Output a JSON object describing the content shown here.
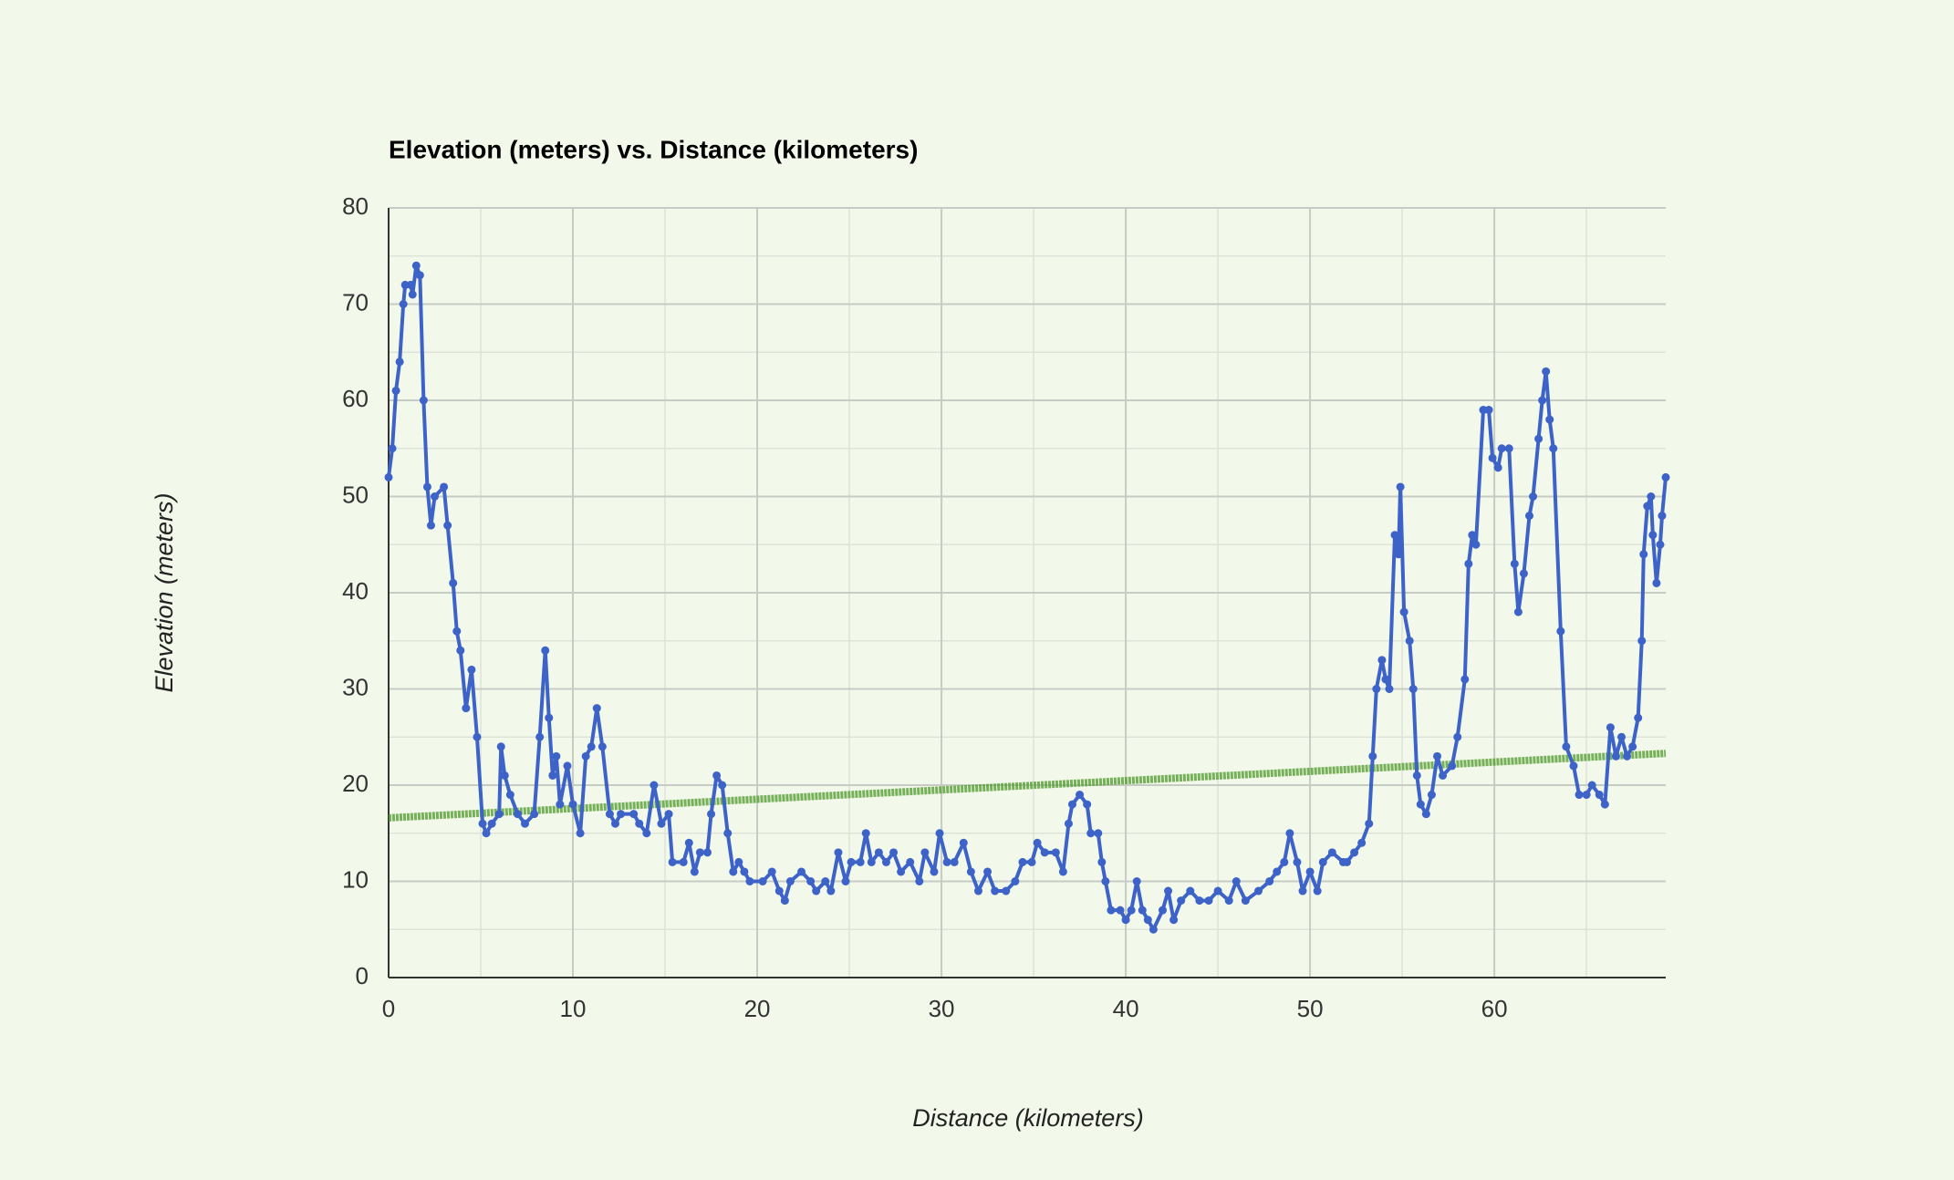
{
  "chart_data": {
    "type": "line",
    "title": "Elevation (meters) vs. Distance (kilometers)",
    "x_label": "Distance (kilometers)",
    "y_label": "Elevation (meters)",
    "x": [
      0,
      0.2,
      0.4,
      0.6,
      0.8,
      0.9,
      1.2,
      1.3,
      1.5,
      1.7,
      1.9,
      2.1,
      2.3,
      2.5,
      3.0,
      3.2,
      3.5,
      3.7,
      3.9,
      4.2,
      4.5,
      4.8,
      5.1,
      5.3,
      5.6,
      6.0,
      6.1,
      6.3,
      6.6,
      7.0,
      7.4,
      7.9,
      8.2,
      8.5,
      8.7,
      8.9,
      9.1,
      9.3,
      9.7,
      10.0,
      10.4,
      10.7,
      11.0,
      11.3,
      11.6,
      12.0,
      12.3,
      12.6,
      13.3,
      13.6,
      14.0,
      14.4,
      14.8,
      15.2,
      15.4,
      16.0,
      16.3,
      16.6,
      16.9,
      17.3,
      17.5,
      17.8,
      18.1,
      18.4,
      18.7,
      19.0,
      19.3,
      19.6,
      20.3,
      20.8,
      21.2,
      21.5,
      21.8,
      22.4,
      22.9,
      23.2,
      23.7,
      24.0,
      24.4,
      24.8,
      25.1,
      25.6,
      25.9,
      26.2,
      26.6,
      27.0,
      27.4,
      27.8,
      28.3,
      28.8,
      29.1,
      29.6,
      29.9,
      30.3,
      30.7,
      31.2,
      31.6,
      32.0,
      32.5,
      32.9,
      33.5,
      34.0,
      34.4,
      34.9,
      35.2,
      35.6,
      36.2,
      36.6,
      36.9,
      37.1,
      37.5,
      37.9,
      38.1,
      38.5,
      38.7,
      38.9,
      39.2,
      39.7,
      40.0,
      40.3,
      40.6,
      40.9,
      41.2,
      41.5,
      42.0,
      42.3,
      42.6,
      43.0,
      43.5,
      44.0,
      44.5,
      45.0,
      45.6,
      46.0,
      46.5,
      47.2,
      47.8,
      48.2,
      48.6,
      48.9,
      49.3,
      49.6,
      50.0,
      50.4,
      50.7,
      51.2,
      51.8,
      52.0,
      52.4,
      52.8,
      53.2,
      53.4,
      53.6,
      53.9,
      54.1,
      54.3,
      54.6,
      54.8,
      54.9,
      55.1,
      55.4,
      55.6,
      55.8,
      56.0,
      56.3,
      56.6,
      56.9,
      57.2,
      57.7,
      58.0,
      58.4,
      58.6,
      58.8,
      59.0,
      59.4,
      59.7,
      59.9,
      60.2,
      60.4,
      60.8,
      61.1,
      61.3,
      61.6,
      61.9,
      62.1,
      62.4,
      62.6,
      62.8,
      63.0,
      63.2,
      63.6,
      63.9,
      64.3,
      64.6,
      65.0,
      65.3,
      65.7,
      66.0,
      66.3,
      66.6,
      66.9,
      67.2,
      67.5,
      67.8,
      68.0,
      68.1,
      68.3,
      68.5,
      68.6,
      68.8,
      69.0,
      69.1,
      69.3
    ],
    "series": [
      {
        "color": "#3d63c9",
        "values": [
          52,
          55,
          61,
          64,
          70,
          72,
          72,
          71,
          74,
          73,
          60,
          51,
          47,
          50,
          51,
          47,
          41,
          36,
          34,
          28,
          32,
          25,
          16,
          15,
          16,
          17,
          24,
          21,
          19,
          17,
          16,
          17,
          25,
          34,
          27,
          21,
          23,
          18,
          22,
          18,
          15,
          23,
          24,
          28,
          24,
          17,
          16,
          17,
          17,
          16,
          15,
          20,
          16,
          17,
          12,
          12,
          14,
          11,
          13,
          13,
          17,
          21,
          20,
          15,
          11,
          12,
          11,
          10,
          10,
          11,
          9,
          8,
          10,
          11,
          10,
          9,
          10,
          9,
          13,
          10,
          12,
          12,
          15,
          12,
          13,
          12,
          13,
          11,
          12,
          10,
          13,
          11,
          15,
          12,
          12,
          14,
          11,
          9,
          11,
          9,
          9,
          10,
          12,
          12,
          14,
          13,
          13,
          11,
          16,
          18,
          19,
          18,
          15,
          15,
          12,
          10,
          7,
          7,
          6,
          7,
          10,
          7,
          6,
          5,
          7,
          9,
          6,
          8,
          9,
          8,
          8,
          9,
          8,
          10,
          8,
          9,
          10,
          11,
          12,
          15,
          12,
          9,
          11,
          9,
          12,
          13,
          12,
          12,
          13,
          14,
          16,
          23,
          30,
          33,
          31,
          30,
          46,
          44,
          51,
          38,
          35,
          30,
          21,
          18,
          17,
          19,
          23,
          21,
          22,
          25,
          31,
          43,
          46,
          45,
          59,
          59,
          54,
          53,
          55,
          55,
          43,
          38,
          42,
          48,
          50,
          56,
          60,
          63,
          58,
          55,
          36,
          24,
          22,
          19,
          19,
          20,
          19,
          18,
          26,
          23,
          25,
          23,
          24,
          27,
          35,
          44,
          49,
          50,
          46,
          41,
          45,
          48,
          52
        ]
      }
    ],
    "trendline": {
      "x": [
        0,
        69.3
      ],
      "values": [
        16.6,
        23.3
      ],
      "color": "#4c9a2a"
    },
    "xlim": [
      0,
      69.3
    ],
    "ylim": [
      0,
      80
    ],
    "xticks": [
      0,
      10,
      20,
      30,
      40,
      50,
      60
    ],
    "yticks": [
      0,
      10,
      20,
      30,
      40,
      50,
      60,
      70,
      80
    ],
    "grid": true,
    "minor_grid": true
  }
}
